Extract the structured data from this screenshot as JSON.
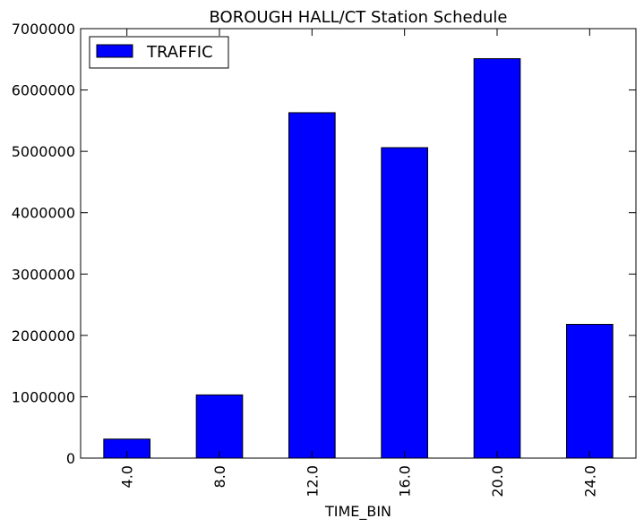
{
  "chart_data": {
    "type": "bar",
    "title": "BOROUGH HALL/CT Station Schedule",
    "xlabel": "TIME_BIN",
    "ylabel": "",
    "categories": [
      "4.0",
      "8.0",
      "12.0",
      "16.0",
      "20.0",
      "24.0"
    ],
    "series": [
      {
        "name": "TRAFFIC",
        "color": "#0000ff",
        "values": [
          310000,
          1030000,
          5630000,
          5060000,
          6510000,
          2180000
        ]
      }
    ],
    "ylim": [
      0,
      7000000
    ],
    "yticks": [
      "0",
      "1000000",
      "2000000",
      "3000000",
      "4000000",
      "5000000",
      "6000000",
      "7000000"
    ],
    "ytick_values": [
      0,
      1000000,
      2000000,
      3000000,
      4000000,
      5000000,
      6000000,
      7000000
    ],
    "grid": false,
    "legend_position": "top-left"
  }
}
